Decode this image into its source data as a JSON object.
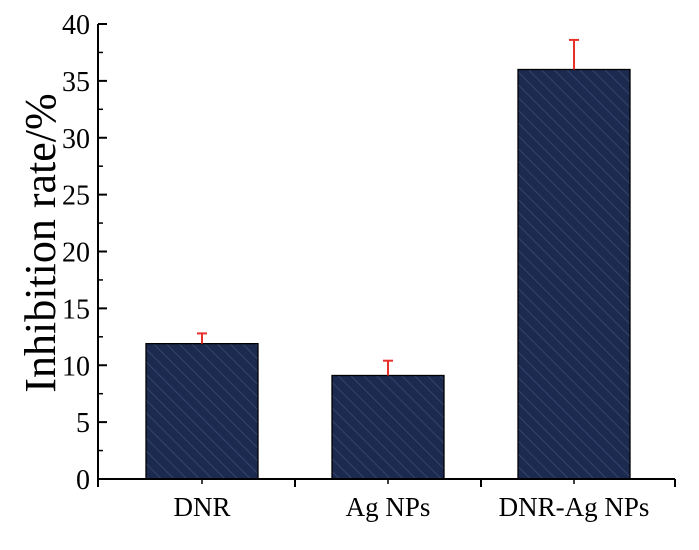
{
  "chart_data": {
    "type": "bar",
    "title": "",
    "xlabel": "",
    "ylabel": "Inhibition rate/%",
    "categories": [
      "DNR",
      "Ag NPs",
      "DNR-Ag NPs"
    ],
    "values": [
      11.9,
      9.1,
      36.0
    ],
    "error_plus": [
      0.9,
      1.3,
      2.6
    ],
    "ylim": [
      0,
      40
    ],
    "yticks": [
      0,
      5,
      10,
      15,
      20,
      25,
      30,
      35,
      40
    ],
    "grid": false,
    "bar_fill_color": "#1c2a50",
    "bar_hatch_color": "#3a4a72",
    "error_bar_color": "#e8302a",
    "axis_color": "#000000"
  }
}
